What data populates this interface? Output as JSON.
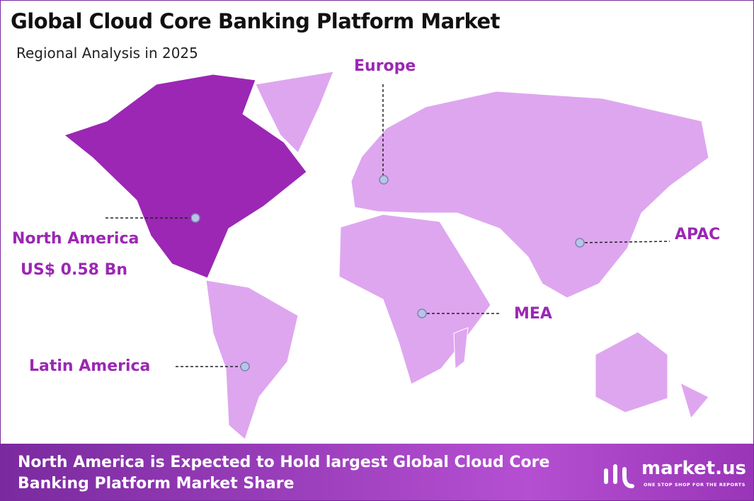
{
  "header": {
    "title": "Global Cloud Core Banking Platform Market",
    "subtitle": "Regional Analysis in 2025"
  },
  "regions": [
    {
      "label": "North America",
      "value": "US$ 0.58 Bn"
    },
    {
      "label": "Europe"
    },
    {
      "label": "APAC"
    },
    {
      "label": "MEA"
    },
    {
      "label": "Latin America"
    }
  ],
  "footer": {
    "text": "North America is Expected to Hold largest Global Cloud Core Banking Platform Market Share",
    "brand": "market.us",
    "tagline": "ONE STOP SHOP FOR THE REPORTS"
  }
}
